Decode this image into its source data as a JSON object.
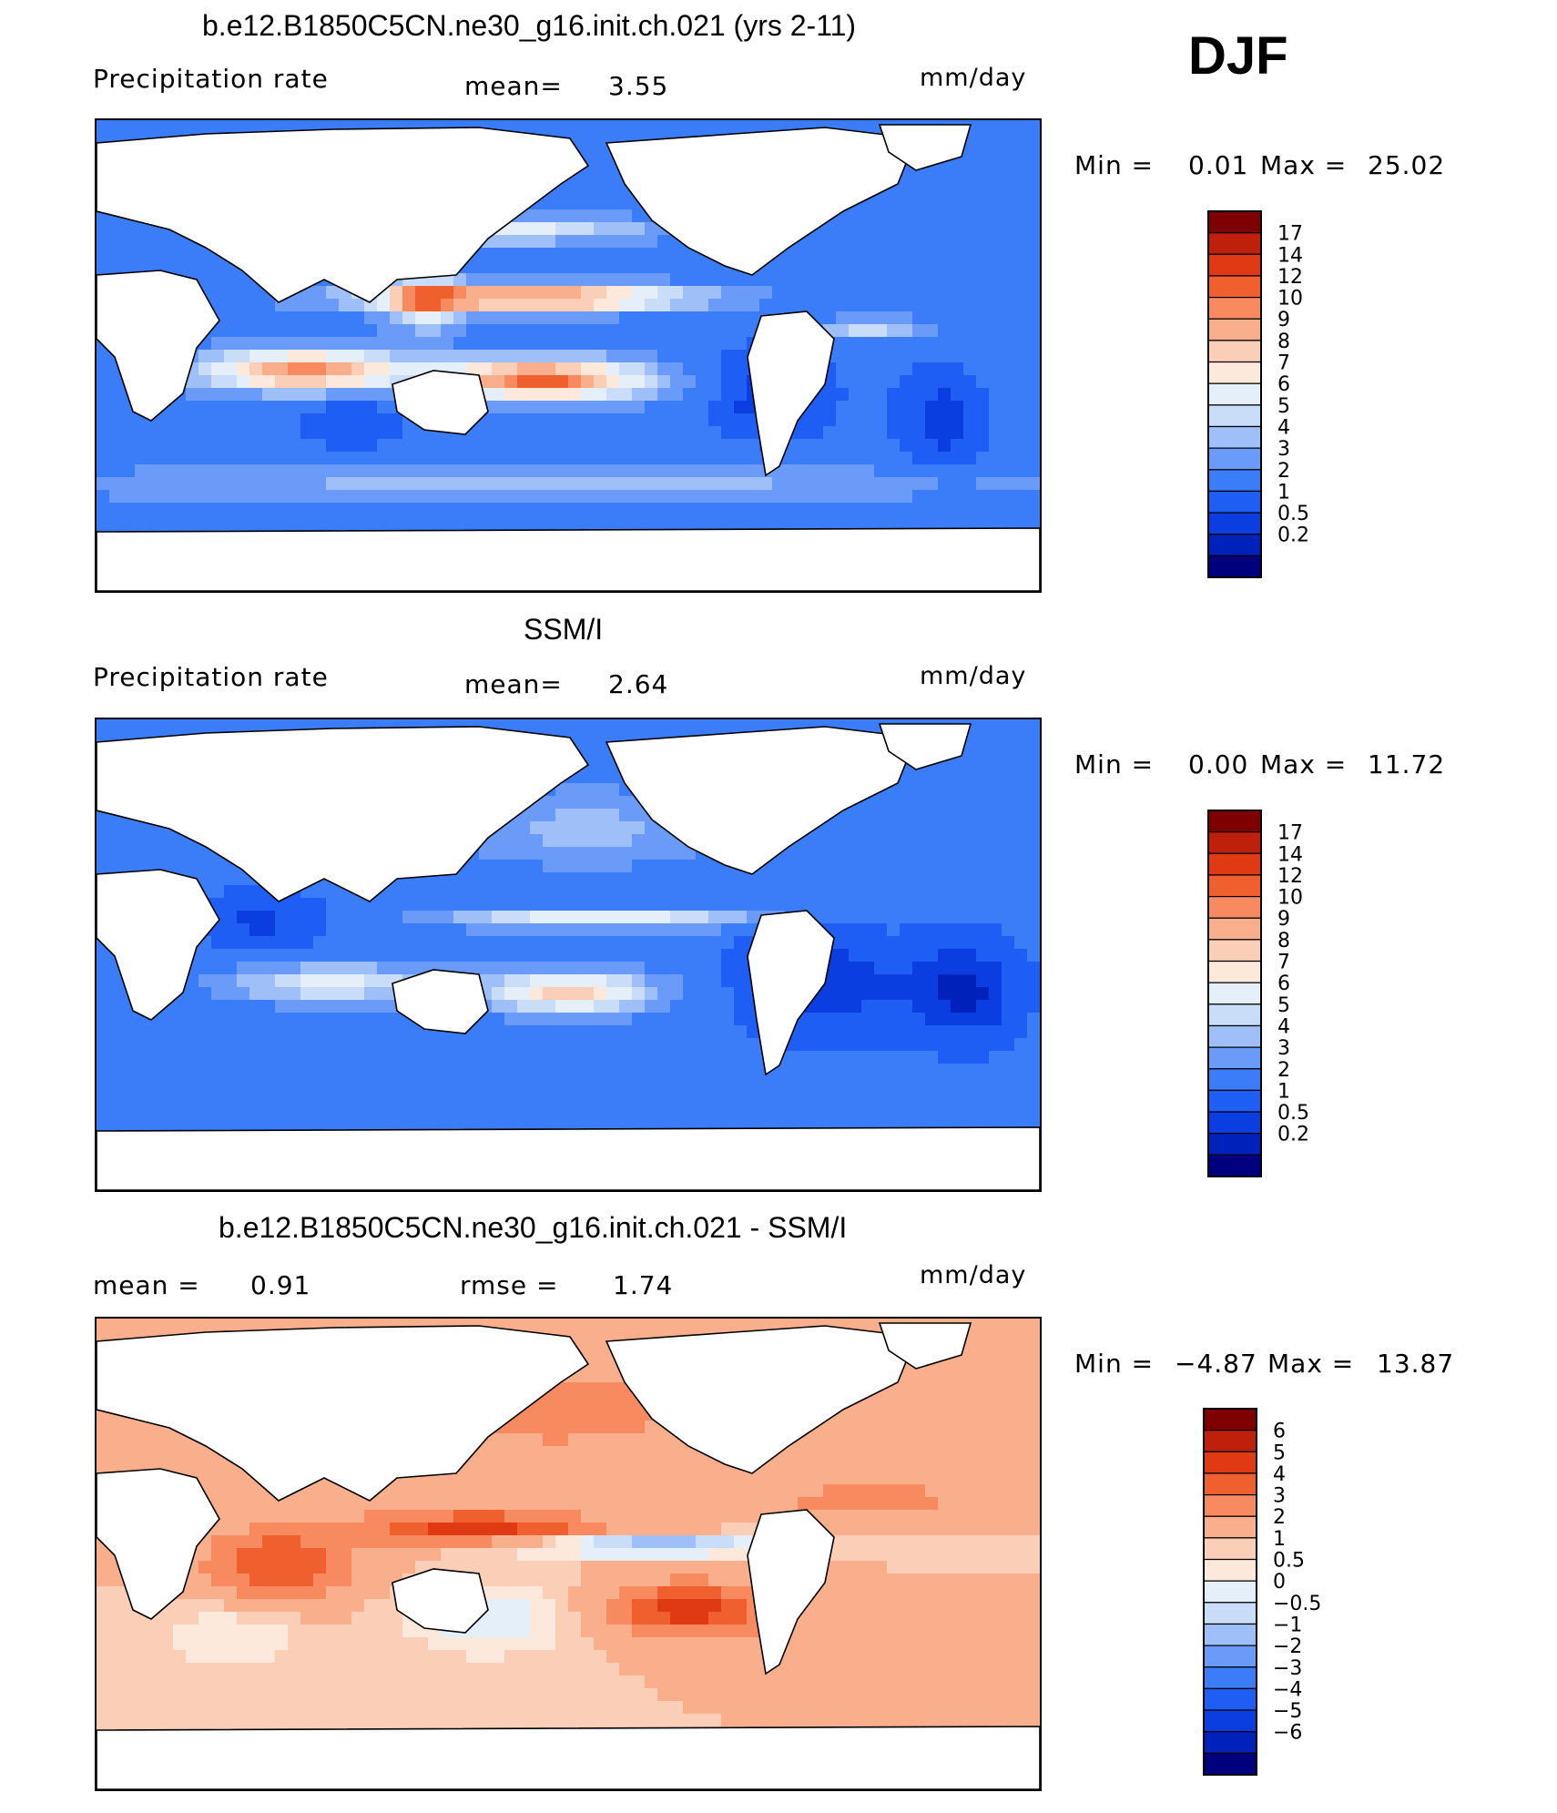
{
  "season": "DJF",
  "colors": {
    "precip": [
      "#00007f",
      "#0022bb",
      "#0a3ee0",
      "#1f5ef4",
      "#3b7df8",
      "#6a9bf9",
      "#9ebff8",
      "#c9dcf8",
      "#e5effa",
      "#fde9dc",
      "#fbcfb7",
      "#f9ae8c",
      "#f78a5f",
      "#f0602f",
      "#e03a14",
      "#be200b",
      "#7f0000"
    ],
    "diff": [
      "#00007f",
      "#0022bb",
      "#0a3ee0",
      "#1f5ef4",
      "#3b7df8",
      "#6a9bf9",
      "#9ebff8",
      "#c9dcf8",
      "#e5effa",
      "#fde9dc",
      "#fbcfb7",
      "#f9ae8c",
      "#f78a5f",
      "#f0602f",
      "#e03a14",
      "#be200b",
      "#7f0000"
    ]
  },
  "panels": [
    {
      "title": "b.e12.B1850C5CN.ne30_g16.init.ch.021 (yrs 2-11)",
      "left_label": "Precipitation  rate",
      "stat1_label": "mean=",
      "stat1_value": "3.55",
      "stat2_label": "",
      "stat2_value": "",
      "units": "mm/day",
      "min_label": "Min  =",
      "min_value": "0.01",
      "max_label": "Max  =",
      "max_value": "25.02"
    },
    {
      "title": "SSM/I",
      "left_label": "Precipitation  rate",
      "stat1_label": "mean=",
      "stat1_value": "2.64",
      "stat2_label": "",
      "stat2_value": "",
      "units": "mm/day",
      "min_label": "Min  =",
      "min_value": "0.00",
      "max_label": "Max  =",
      "max_value": "11.72"
    },
    {
      "title": "b.e12.B1850C5CN.ne30_g16.init.ch.021 - SSM/I",
      "left_label": "mean  =",
      "left_value": "0.91",
      "stat1_label": "rmse  =",
      "stat1_value": "1.74",
      "units": "mm/day",
      "min_label": "Min  =",
      "min_value": "−4.87",
      "max_label": "Max  =",
      "max_value": "13.87"
    }
  ],
  "chart_data": [
    {
      "type": "heatmap",
      "title": "b.e12.B1850C5CN.ne30_g16.init.ch.021 (yrs 2-11)",
      "variable": "Precipitation rate",
      "units": "mm/day",
      "mean": 3.55,
      "min": 0.01,
      "max": 25.02,
      "contour_levels": [
        "0.2",
        "0.5",
        "1",
        "2",
        "3",
        "4",
        "5",
        "6",
        "7",
        "8",
        "9",
        "10",
        "12",
        "14",
        "17"
      ],
      "colorbar": "precip"
    },
    {
      "type": "heatmap",
      "title": "SSM/I",
      "variable": "Precipitation rate",
      "units": "mm/day",
      "mean": 2.64,
      "min": 0.0,
      "max": 11.72,
      "contour_levels": [
        "0.2",
        "0.5",
        "1",
        "2",
        "3",
        "4",
        "5",
        "6",
        "7",
        "8",
        "9",
        "10",
        "12",
        "14",
        "17"
      ],
      "colorbar": "precip"
    },
    {
      "type": "heatmap",
      "title": "b.e12.B1850C5CN.ne30_g16.init.ch.021 - SSM/I",
      "units": "mm/day",
      "mean": 0.91,
      "rmse": 1.74,
      "min": -4.87,
      "max": 13.87,
      "contour_levels": [
        "−6",
        "−5",
        "−4",
        "−3",
        "−2",
        "−1",
        "−0.5",
        "0",
        "0.5",
        "1",
        "2",
        "3",
        "4",
        "5",
        "6"
      ],
      "colorbar": "diff"
    }
  ]
}
